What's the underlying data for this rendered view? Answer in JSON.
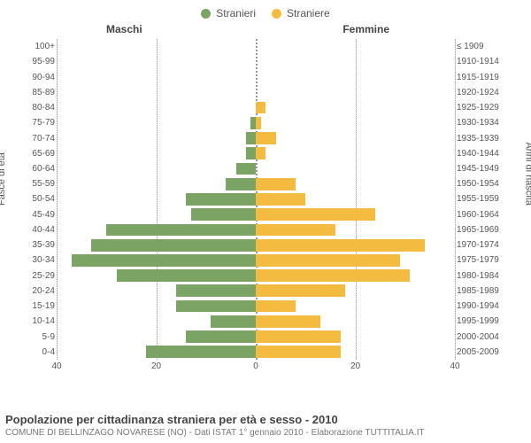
{
  "legend": {
    "male": {
      "label": "Stranieri",
      "color": "#7ba363"
    },
    "female": {
      "label": "Straniere",
      "color": "#f4bb41"
    }
  },
  "headers": {
    "left": "Maschi",
    "right": "Femmine"
  },
  "axis_titles": {
    "left": "Fasce di età",
    "right": "Anni di nascita"
  },
  "chart": {
    "type": "population-pyramid",
    "x_max": 40,
    "x_ticks": [
      40,
      20,
      0,
      20,
      40
    ],
    "background_color": "#ffffff",
    "grid_color": "rgba(120,120,120,0.4)",
    "age_groups": [
      {
        "age": "100+",
        "birth": "≤ 1909",
        "m": 0,
        "f": 0
      },
      {
        "age": "95-99",
        "birth": "1910-1914",
        "m": 0,
        "f": 0
      },
      {
        "age": "90-94",
        "birth": "1915-1919",
        "m": 0,
        "f": 0
      },
      {
        "age": "85-89",
        "birth": "1920-1924",
        "m": 0,
        "f": 0
      },
      {
        "age": "80-84",
        "birth": "1925-1929",
        "m": 0,
        "f": 2
      },
      {
        "age": "75-79",
        "birth": "1930-1934",
        "m": 1,
        "f": 1
      },
      {
        "age": "70-74",
        "birth": "1935-1939",
        "m": 2,
        "f": 4
      },
      {
        "age": "65-69",
        "birth": "1940-1944",
        "m": 2,
        "f": 2
      },
      {
        "age": "60-64",
        "birth": "1945-1949",
        "m": 4,
        "f": 0
      },
      {
        "age": "55-59",
        "birth": "1950-1954",
        "m": 6,
        "f": 8
      },
      {
        "age": "50-54",
        "birth": "1955-1959",
        "m": 14,
        "f": 10
      },
      {
        "age": "45-49",
        "birth": "1960-1964",
        "m": 13,
        "f": 24
      },
      {
        "age": "40-44",
        "birth": "1965-1969",
        "m": 30,
        "f": 16
      },
      {
        "age": "35-39",
        "birth": "1970-1974",
        "m": 33,
        "f": 34
      },
      {
        "age": "30-34",
        "birth": "1975-1979",
        "m": 37,
        "f": 29
      },
      {
        "age": "25-29",
        "birth": "1980-1984",
        "m": 28,
        "f": 31
      },
      {
        "age": "20-24",
        "birth": "1985-1989",
        "m": 16,
        "f": 18
      },
      {
        "age": "15-19",
        "birth": "1990-1994",
        "m": 16,
        "f": 8
      },
      {
        "age": "10-14",
        "birth": "1995-1999",
        "m": 9,
        "f": 13
      },
      {
        "age": "5-9",
        "birth": "2000-2004",
        "m": 14,
        "f": 17
      },
      {
        "age": "0-4",
        "birth": "2005-2009",
        "m": 22,
        "f": 17
      }
    ]
  },
  "footer": {
    "title": "Popolazione per cittadinanza straniera per età e sesso - 2010",
    "subtitle": "COMUNE DI BELLINZAGO NOVARESE (NO) - Dati ISTAT 1° gennaio 2010 - Elaborazione TUTTITALIA.IT"
  }
}
